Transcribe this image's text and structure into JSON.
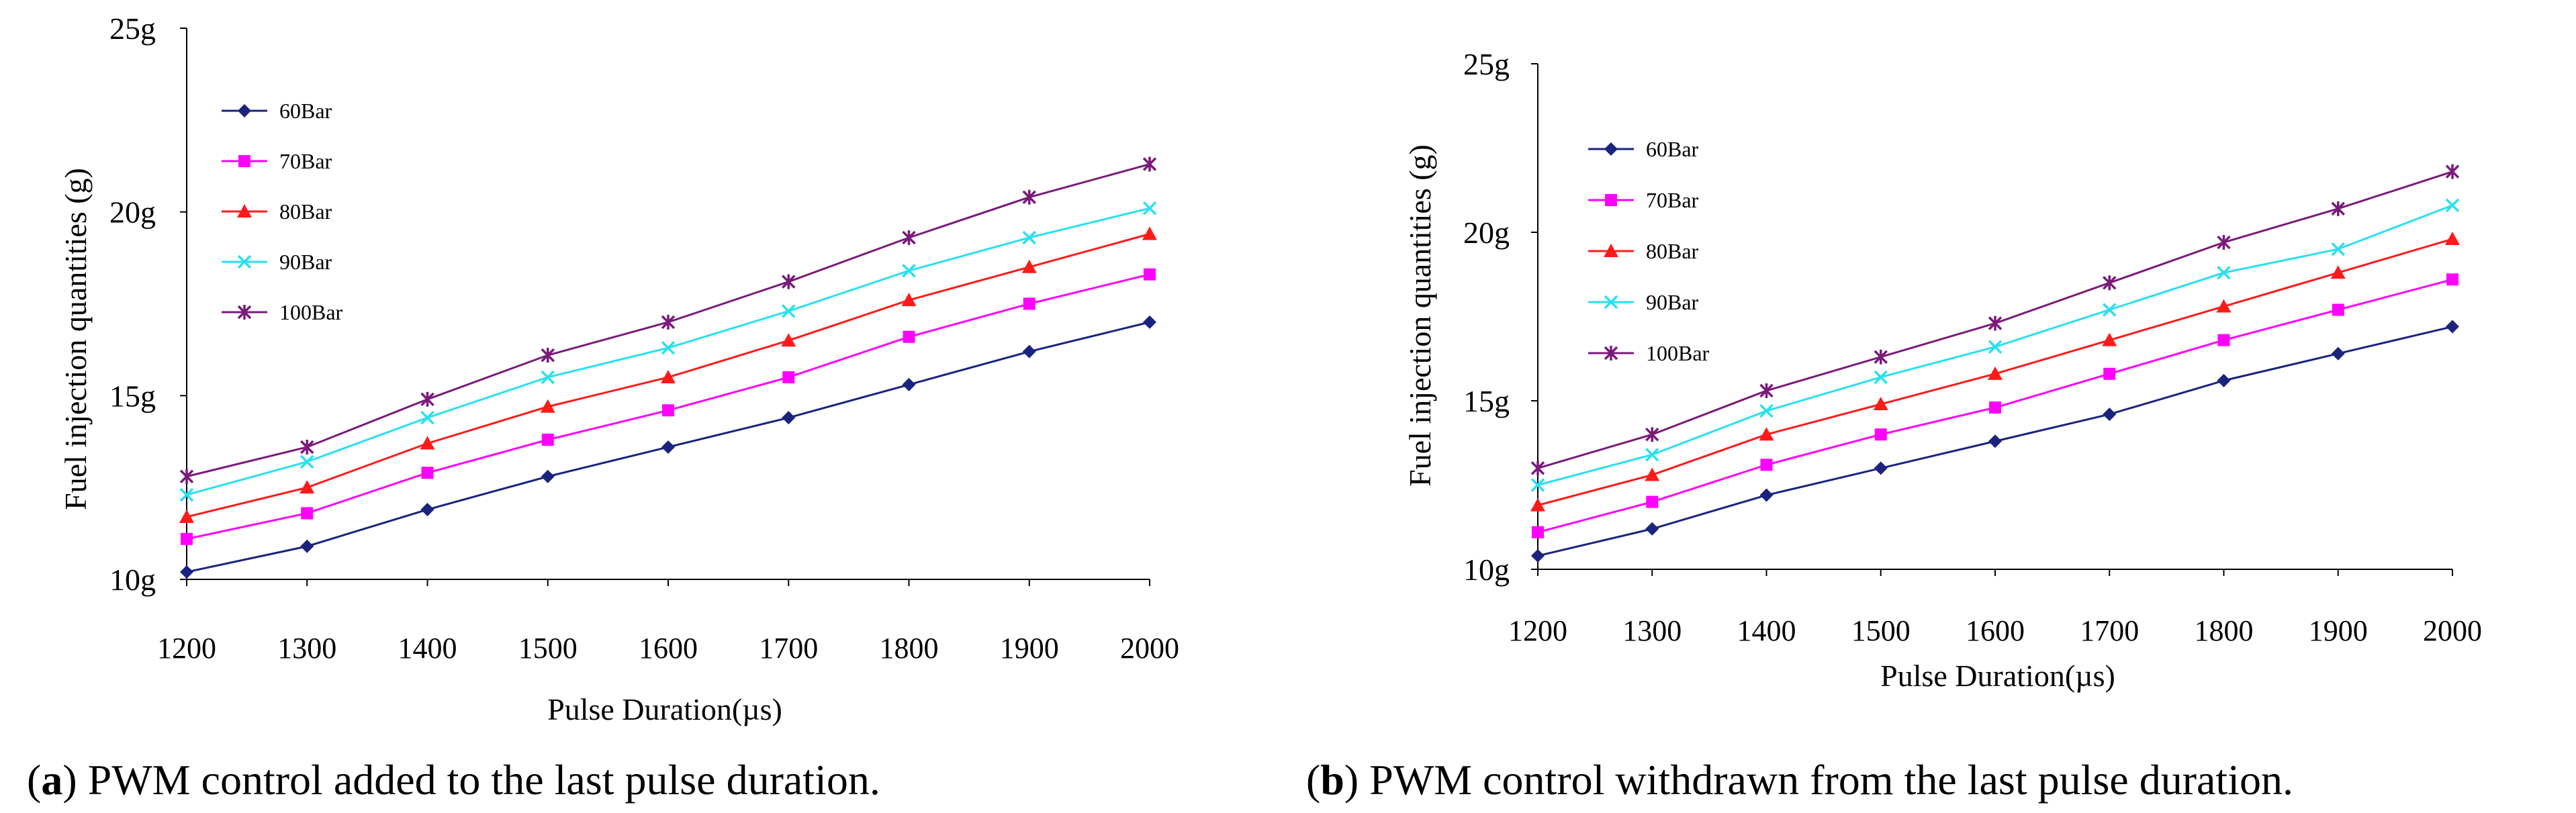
{
  "colors": {
    "60Bar": "#1a237e",
    "70Bar": "#ff00ff",
    "80Bar": "#ff1a1a",
    "90Bar": "#29e0f0",
    "100Bar": "#7a1a7a"
  },
  "chart_data": [
    {
      "type": "line",
      "panel_letter": "a",
      "caption": "PWM control added to the last pulse duration.",
      "xlabel": "Pulse Duration(µs)",
      "ylabel": "Fuel injection quantities (g)",
      "x": [
        1200,
        1300,
        1400,
        1500,
        1600,
        1700,
        1800,
        1900,
        2000
      ],
      "y_ticks": [
        "10g",
        "15g",
        "20g",
        "25g"
      ],
      "y_tick_values": [
        10,
        15,
        20,
        25
      ],
      "ylim": [
        10,
        25
      ],
      "legend_position": "top-left",
      "grid": false,
      "series": [
        {
          "name": "60Bar",
          "marker": "diamond",
          "values": [
            10.2,
            10.9,
            11.9,
            12.8,
            13.6,
            14.4,
            15.3,
            16.2,
            17.0
          ]
        },
        {
          "name": "70Bar",
          "marker": "square",
          "values": [
            11.1,
            11.8,
            12.9,
            13.8,
            14.6,
            15.5,
            16.6,
            17.5,
            18.3
          ]
        },
        {
          "name": "80Bar",
          "marker": "triangle",
          "values": [
            11.7,
            12.5,
            13.7,
            14.7,
            15.5,
            16.5,
            17.6,
            18.5,
            19.4
          ]
        },
        {
          "name": "90Bar",
          "marker": "x",
          "values": [
            12.3,
            13.2,
            14.4,
            15.5,
            16.3,
            17.3,
            18.4,
            19.3,
            20.1
          ]
        },
        {
          "name": "100Bar",
          "marker": "star",
          "values": [
            12.8,
            13.6,
            14.9,
            16.1,
            17.0,
            18.1,
            19.3,
            20.4,
            21.3
          ]
        }
      ]
    },
    {
      "type": "line",
      "panel_letter": "b",
      "caption": "PWM control withdrawn from the last pulse duration.",
      "xlabel": "Pulse Duration(µs)",
      "ylabel": "Fuel injection quantities (g)",
      "x": [
        1200,
        1300,
        1400,
        1500,
        1600,
        1700,
        1800,
        1900,
        2000
      ],
      "y_ticks": [
        "10g",
        "15g",
        "20g",
        "25g"
      ],
      "y_tick_values": [
        10,
        15,
        20,
        25
      ],
      "ylim": [
        10,
        25
      ],
      "legend_position": "top-left",
      "grid": false,
      "series": [
        {
          "name": "60Bar",
          "marker": "diamond",
          "values": [
            10.4,
            11.2,
            12.2,
            13.0,
            13.8,
            14.6,
            15.6,
            16.4,
            17.2
          ]
        },
        {
          "name": "70Bar",
          "marker": "square",
          "values": [
            11.1,
            12.0,
            13.1,
            14.0,
            14.8,
            15.8,
            16.8,
            17.7,
            18.6
          ]
        },
        {
          "name": "80Bar",
          "marker": "triangle",
          "values": [
            11.9,
            12.8,
            14.0,
            14.9,
            15.8,
            16.8,
            17.8,
            18.8,
            19.8
          ]
        },
        {
          "name": "90Bar",
          "marker": "x",
          "values": [
            12.5,
            13.4,
            14.7,
            15.7,
            16.6,
            17.7,
            18.8,
            19.5,
            20.8
          ]
        },
        {
          "name": "100Bar",
          "marker": "star",
          "values": [
            13.0,
            14.0,
            15.3,
            16.3,
            17.3,
            18.5,
            19.7,
            20.7,
            21.8
          ]
        }
      ]
    }
  ]
}
